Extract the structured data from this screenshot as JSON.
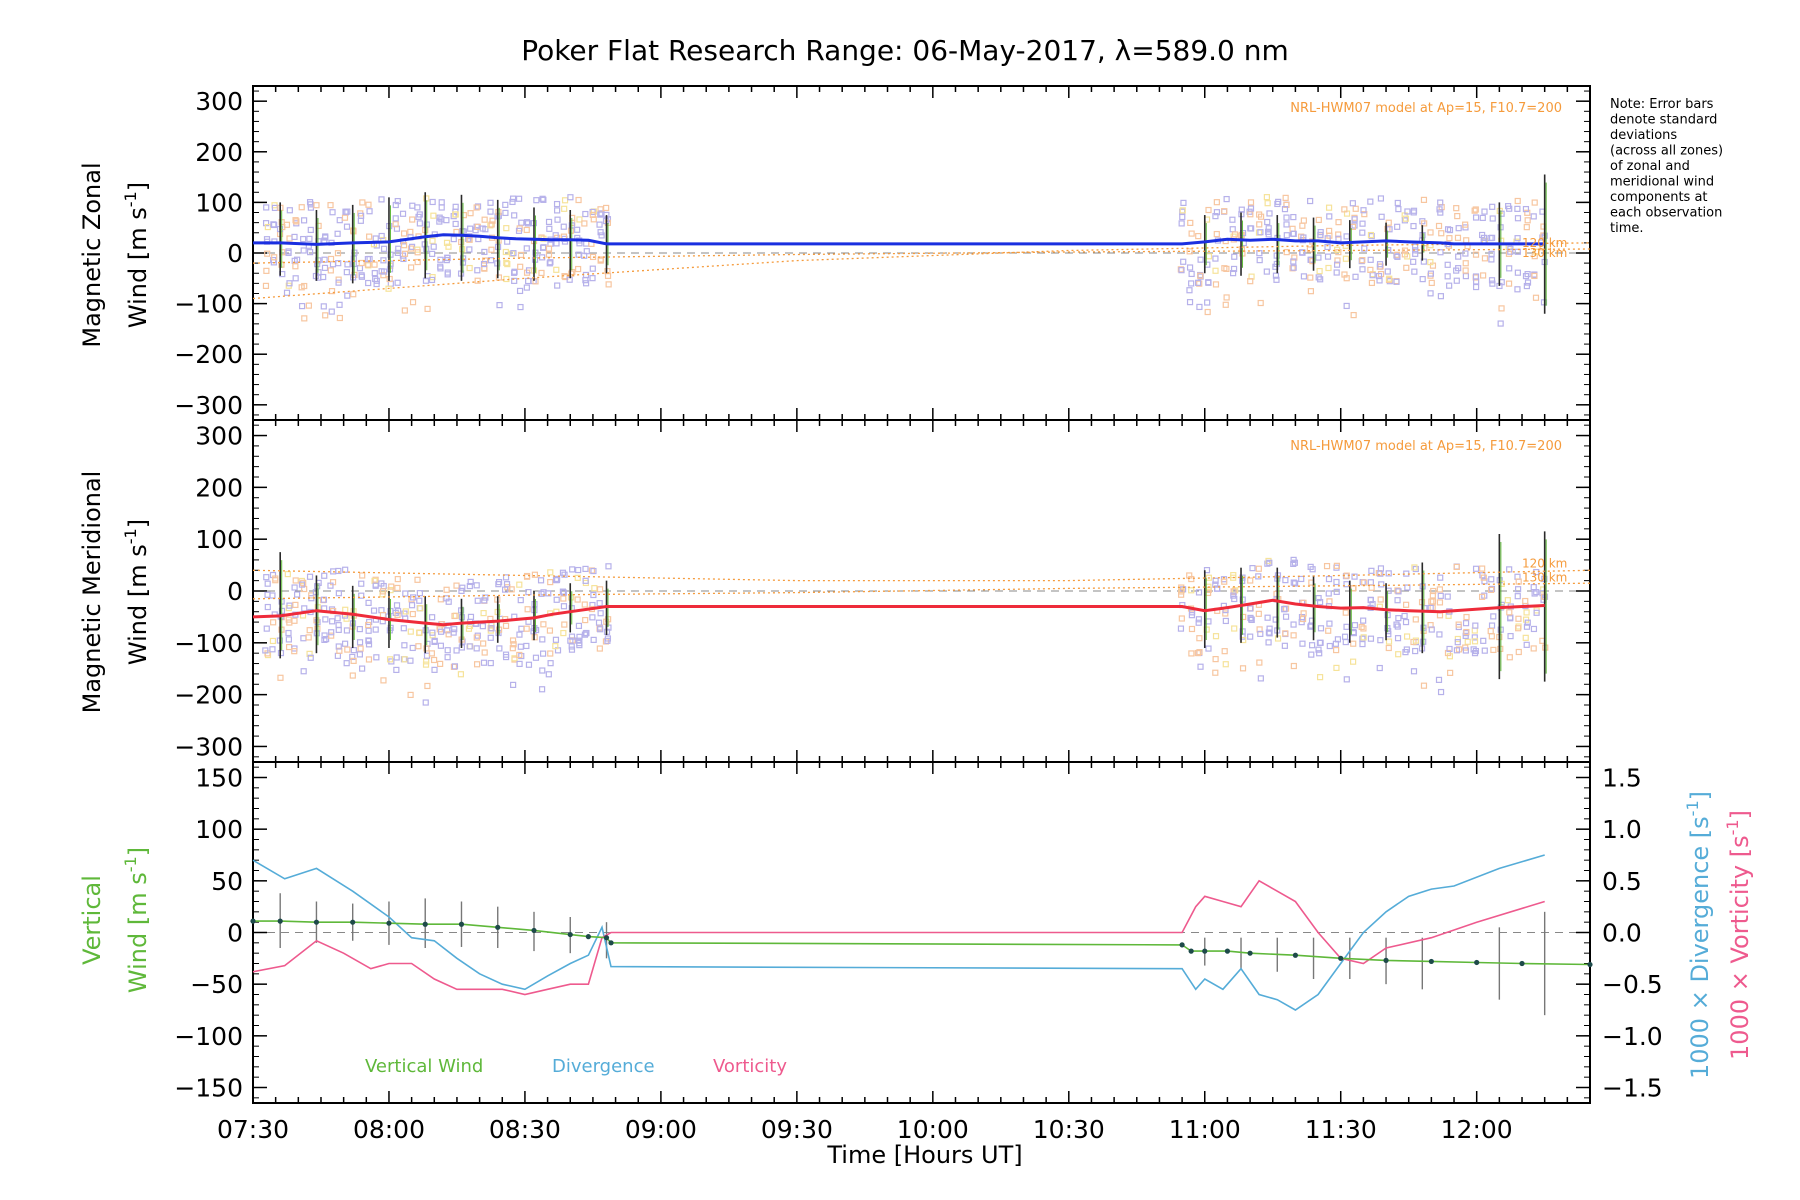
{
  "title": "Poker Flat Research Range: 06-May-2017, λ=589.0 nm",
  "note": [
    "Note: Error bars",
    "denote standard",
    "deviations",
    "(across all zones)",
    "of zonal and",
    "meridional wind",
    "components at",
    "each observation",
    "time."
  ],
  "colors": {
    "zonal": "#1a2fe0",
    "meridional": "#ee2b3a",
    "vertical": "#5fb83a",
    "divergence": "#55acd8",
    "vorticity": "#ee5a8e",
    "model": "#f59b3c",
    "scatter": "#b6b1ea",
    "errorbar": "#2a2a2a"
  },
  "panels": {
    "zonal": {
      "ylabel_line1": "Magnetic Zonal",
      "ylabel_line2": "Wind [m s",
      "ylabel_sup": "-1",
      "ylabel_close": "]",
      "model_label": "NRL-HWM07 model at Ap=15, F10.7=200",
      "alt_labels": [
        "120 km",
        "130 km"
      ]
    },
    "meridional": {
      "ylabel_line1": "Magnetic Meridional",
      "ylabel_line2": "Wind [m s",
      "ylabel_sup": "-1",
      "ylabel_close": "]",
      "model_label": "NRL-HWM07 model at Ap=15, F10.7=200",
      "alt_labels": [
        "120 km",
        "130 km"
      ]
    },
    "vertical": {
      "ylabel_line1": "Vertical",
      "ylabel_line2": "Wind [m s",
      "ylabel_sup": "-1",
      "ylabel_close": "]",
      "right_label_div": "1000 × Divergence [s",
      "right_label_vor": "1000 × Vorticity [s",
      "right_sup": "-1",
      "right_close": "]",
      "legend": [
        "Vertical Wind",
        "Divergence",
        "Vorticity"
      ]
    }
  },
  "xlabel": "Time [Hours UT]",
  "chart_data": [
    {
      "type": "line",
      "panel": "zonal",
      "ylabel": "Magnetic Zonal Wind [m s-1]",
      "xlim": [
        "07:30",
        "12:25"
      ],
      "ylim": [
        -330,
        330
      ],
      "yticks": [
        "300",
        "200",
        "100",
        "0",
        "−100",
        "−200",
        "−300"
      ],
      "xticks": [
        "07:30",
        "08:00",
        "08:30",
        "09:00",
        "09:30",
        "10:00",
        "10:30",
        "11:00",
        "11:30",
        "12:00"
      ],
      "series": [
        {
          "x": [
            "07:30",
            "07:36",
            "07:44",
            "07:52",
            "08:00",
            "08:08",
            "08:12",
            "08:16",
            "08:20",
            "08:24",
            "08:28",
            "08:32",
            "08:36",
            "08:40",
            "08:44",
            "08:48",
            "10:55",
            "11:00",
            "11:05",
            "11:10",
            "11:15",
            "11:20",
            "11:25",
            "11:30",
            "11:35",
            "11:40",
            "11:45",
            "11:52",
            "11:55",
            "12:05",
            "12:15"
          ],
          "values": [
            20,
            20,
            17,
            20,
            22,
            32,
            36,
            35,
            33,
            30,
            28,
            27,
            26,
            26,
            25,
            18,
            18,
            22,
            27,
            25,
            27,
            24,
            24,
            20,
            22,
            24,
            22,
            20,
            18,
            18,
            18
          ]
        }
      ],
      "error_bars": [
        {
          "x": "07:36",
          "low": -45,
          "high": 100
        },
        {
          "x": "07:44",
          "low": -55,
          "high": 85
        },
        {
          "x": "07:52",
          "low": -60,
          "high": 95
        },
        {
          "x": "08:00",
          "low": -55,
          "high": 110
        },
        {
          "x": "08:08",
          "low": -50,
          "high": 120
        },
        {
          "x": "08:16",
          "low": -55,
          "high": 115
        },
        {
          "x": "08:24",
          "low": -50,
          "high": 105
        },
        {
          "x": "08:32",
          "low": -55,
          "high": 90
        },
        {
          "x": "08:40",
          "low": -50,
          "high": 85
        },
        {
          "x": "08:48",
          "low": -40,
          "high": 75
        },
        {
          "x": "11:00",
          "low": -40,
          "high": 75
        },
        {
          "x": "11:08",
          "low": -45,
          "high": 80
        },
        {
          "x": "11:16",
          "low": -40,
          "high": 75
        },
        {
          "x": "11:24",
          "low": -35,
          "high": 70
        },
        {
          "x": "11:32",
          "low": -30,
          "high": 65
        },
        {
          "x": "11:40",
          "low": -25,
          "high": 60
        },
        {
          "x": "11:48",
          "low": -15,
          "high": 55
        },
        {
          "x": "12:05",
          "low": -65,
          "high": 100
        },
        {
          "x": "12:15",
          "low": -120,
          "high": 155
        }
      ],
      "model_120km": {
        "x": [
          "07:30",
          "08:30",
          "09:30",
          "10:30",
          "11:30",
          "12:25"
        ],
        "values": [
          -90,
          -50,
          -15,
          5,
          15,
          20
        ]
      },
      "model_130km": {
        "x": [
          "07:30",
          "08:30",
          "09:30",
          "10:30",
          "11:30",
          "12:25"
        ],
        "values": [
          -20,
          -10,
          -3,
          2,
          5,
          8
        ]
      }
    },
    {
      "type": "line",
      "panel": "meridional",
      "ylabel": "Magnetic Meridional Wind [m s-1]",
      "xlim": [
        "07:30",
        "12:25"
      ],
      "ylim": [
        -330,
        330
      ],
      "yticks": [
        "300",
        "200",
        "100",
        "0",
        "−100",
        "−200",
        "−300"
      ],
      "series": [
        {
          "x": [
            "07:30",
            "07:36",
            "07:44",
            "07:52",
            "08:00",
            "08:08",
            "08:12",
            "08:16",
            "08:20",
            "08:24",
            "08:28",
            "08:32",
            "08:36",
            "08:40",
            "08:44",
            "08:48",
            "10:55",
            "11:00",
            "11:05",
            "11:10",
            "11:15",
            "11:20",
            "11:25",
            "11:30",
            "11:35",
            "11:40",
            "11:45",
            "11:52",
            "11:55",
            "12:05",
            "12:15"
          ],
          "values": [
            -50,
            -48,
            -38,
            -45,
            -55,
            -62,
            -65,
            -62,
            -60,
            -58,
            -55,
            -52,
            -45,
            -40,
            -35,
            -30,
            -30,
            -38,
            -32,
            -25,
            -18,
            -25,
            -30,
            -33,
            -32,
            -36,
            -38,
            -40,
            -38,
            -32,
            -28
          ]
        }
      ],
      "error_bars": [
        {
          "x": "07:36",
          "low": -130,
          "high": 75
        },
        {
          "x": "07:44",
          "low": -120,
          "high": 30
        },
        {
          "x": "07:52",
          "low": -110,
          "high": 10
        },
        {
          "x": "08:00",
          "low": -110,
          "high": 0
        },
        {
          "x": "08:08",
          "low": -120,
          "high": -10
        },
        {
          "x": "08:16",
          "low": -110,
          "high": -15
        },
        {
          "x": "08:24",
          "low": -100,
          "high": -10
        },
        {
          "x": "08:32",
          "low": -95,
          "high": 0
        },
        {
          "x": "08:40",
          "low": -80,
          "high": 15
        },
        {
          "x": "08:48",
          "low": -85,
          "high": 20
        },
        {
          "x": "11:00",
          "low": -110,
          "high": 40
        },
        {
          "x": "11:08",
          "low": -100,
          "high": 45
        },
        {
          "x": "11:16",
          "low": -90,
          "high": 45
        },
        {
          "x": "11:24",
          "low": -95,
          "high": 30
        },
        {
          "x": "11:32",
          "low": -100,
          "high": 20
        },
        {
          "x": "11:40",
          "low": -95,
          "high": 15
        },
        {
          "x": "11:48",
          "low": -120,
          "high": 55
        },
        {
          "x": "12:05",
          "low": -170,
          "high": 110
        },
        {
          "x": "12:15",
          "low": -175,
          "high": 115
        }
      ],
      "model_120km": {
        "x": [
          "07:30",
          "08:30",
          "09:30",
          "10:30",
          "11:30",
          "12:25"
        ],
        "values": [
          40,
          30,
          20,
          20,
          30,
          40
        ]
      },
      "model_130km": {
        "x": [
          "07:30",
          "08:30",
          "09:30",
          "10:30",
          "11:30",
          "12:25"
        ],
        "values": [
          -15,
          -8,
          -3,
          5,
          10,
          15
        ]
      }
    },
    {
      "type": "line",
      "panel": "vertical",
      "ylabel": "Vertical Wind [m s-1]",
      "xlabel": "Time [Hours UT]",
      "xlim": [
        "07:30",
        "12:25"
      ],
      "ylim": [
        -165,
        165
      ],
      "yticks": [
        "150",
        "100",
        "50",
        "0",
        "−50",
        "−100",
        "−150"
      ],
      "y2lim": [
        -1.65,
        1.65
      ],
      "y2ticks": [
        "1.5",
        "1.0",
        "0.5",
        "0.0",
        "−0.5",
        "−1.0",
        "−1.5"
      ],
      "series": [
        {
          "name": "Vertical Wind",
          "axis": "left",
          "x": [
            "07:30",
            "07:36",
            "07:44",
            "07:52",
            "08:00",
            "08:08",
            "08:16",
            "08:24",
            "08:32",
            "08:40",
            "08:44",
            "08:48",
            "08:49",
            "10:55",
            "10:57",
            "11:00",
            "11:05",
            "11:10",
            "11:20",
            "11:30",
            "11:40",
            "11:50",
            "12:00",
            "12:10",
            "12:25"
          ],
          "values": [
            11,
            11,
            10,
            10,
            9,
            8,
            8,
            5,
            2,
            -2,
            -4,
            -5,
            -10,
            -12,
            -18,
            -18,
            -18,
            -20,
            -22,
            -25,
            -27,
            -28,
            -29,
            -30,
            -31
          ]
        },
        {
          "name": "Divergence",
          "axis": "right",
          "x": [
            "07:30",
            "07:37",
            "07:44",
            "07:52",
            "08:00",
            "08:05",
            "08:10",
            "08:15",
            "08:20",
            "08:25",
            "08:30",
            "08:35",
            "08:40",
            "08:44",
            "08:47",
            "08:49",
            "10:55",
            "10:58",
            "11:00",
            "11:04",
            "11:08",
            "11:12",
            "11:16",
            "11:20",
            "11:25",
            "11:30",
            "11:35",
            "11:40",
            "11:45",
            "11:50",
            "11:55",
            "12:05",
            "12:15"
          ],
          "values": [
            0.7,
            0.52,
            0.62,
            0.4,
            0.15,
            -0.05,
            -0.08,
            -0.25,
            -0.4,
            -0.5,
            -0.55,
            -0.42,
            -0.3,
            -0.22,
            0.05,
            -0.33,
            -0.35,
            -0.55,
            -0.45,
            -0.55,
            -0.35,
            -0.6,
            -0.65,
            -0.75,
            -0.6,
            -0.3,
            0.0,
            0.2,
            0.35,
            0.42,
            0.45,
            0.62,
            0.75
          ]
        },
        {
          "name": "Vorticity",
          "axis": "right",
          "x": [
            "07:30",
            "07:37",
            "07:44",
            "07:50",
            "07:56",
            "08:00",
            "08:05",
            "08:10",
            "08:15",
            "08:20",
            "08:25",
            "08:30",
            "08:35",
            "08:40",
            "08:44",
            "08:47",
            "08:49",
            "10:55",
            "10:58",
            "11:00",
            "11:04",
            "11:08",
            "11:12",
            "11:16",
            "11:20",
            "11:25",
            "11:30",
            "11:35",
            "11:40",
            "11:50",
            "12:00",
            "12:15"
          ],
          "values": [
            -0.38,
            -0.32,
            -0.08,
            -0.2,
            -0.35,
            -0.3,
            -0.3,
            -0.45,
            -0.55,
            -0.55,
            -0.55,
            -0.6,
            -0.55,
            -0.5,
            -0.5,
            -0.05,
            0.0,
            0.0,
            0.25,
            0.35,
            0.3,
            0.25,
            0.5,
            0.4,
            0.3,
            0.0,
            -0.25,
            -0.3,
            -0.15,
            -0.05,
            0.1,
            0.3
          ]
        }
      ],
      "error_bars": [
        {
          "x": "07:36",
          "low": -15,
          "high": 38
        },
        {
          "x": "07:44",
          "low": -10,
          "high": 30
        },
        {
          "x": "07:52",
          "low": -8,
          "high": 28
        },
        {
          "x": "08:00",
          "low": -12,
          "high": 30
        },
        {
          "x": "08:08",
          "low": -15,
          "high": 33
        },
        {
          "x": "08:16",
          "low": -14,
          "high": 30
        },
        {
          "x": "08:24",
          "low": -15,
          "high": 25
        },
        {
          "x": "08:32",
          "low": -18,
          "high": 20
        },
        {
          "x": "08:40",
          "low": -20,
          "high": 15
        },
        {
          "x": "08:48",
          "low": -25,
          "high": 10
        },
        {
          "x": "11:00",
          "low": -32,
          "high": -5
        },
        {
          "x": "11:08",
          "low": -35,
          "high": -5
        },
        {
          "x": "11:16",
          "low": -38,
          "high": -5
        },
        {
          "x": "11:24",
          "low": -45,
          "high": -5
        },
        {
          "x": "11:32",
          "low": -45,
          "high": -5
        },
        {
          "x": "11:40",
          "low": -50,
          "high": -5
        },
        {
          "x": "11:48",
          "low": -55,
          "high": -5
        },
        {
          "x": "12:05",
          "low": -65,
          "high": 5
        },
        {
          "x": "12:15",
          "low": -80,
          "high": 20
        }
      ]
    }
  ]
}
